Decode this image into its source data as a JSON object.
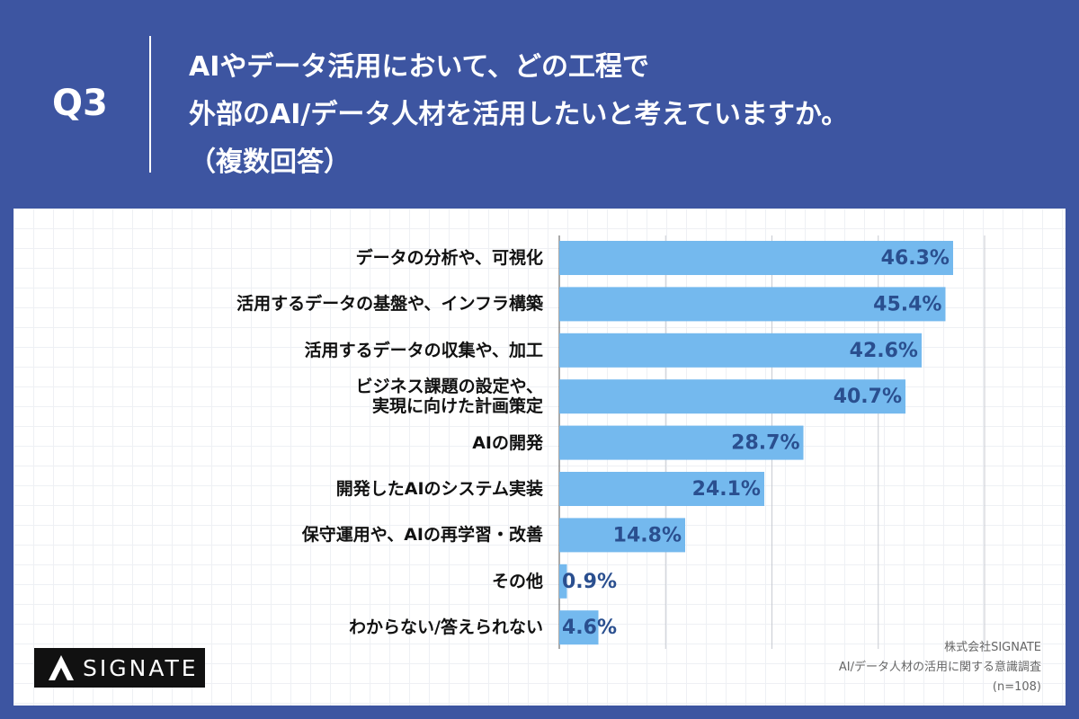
{
  "header": {
    "question": "Q3",
    "title_lines": [
      "AIやデータ活用において、どの工程で",
      "外部のAI/データ人材を活用したいと考えていますか。",
      "（複数回答）"
    ]
  },
  "chart_data": {
    "type": "bar",
    "orientation": "horizontal",
    "categories": [
      "データの分析や、可視化",
      "活用するデータの基盤や、インフラ構築",
      "活用するデータの収集や、加工",
      "ビジネス課題の設定や、\n実現に向けた計画策定",
      "AIの開発",
      "開発したAIのシステム実装",
      "保守運用や、AIの再学習・改善",
      "その他",
      "わからない/答えられない"
    ],
    "values": [
      46.3,
      45.4,
      42.6,
      40.7,
      28.7,
      24.1,
      14.8,
      0.9,
      4.6
    ],
    "value_labels": [
      "46.3%",
      "45.4%",
      "42.6%",
      "40.7%",
      "28.7%",
      "24.1%",
      "14.8%",
      "0.9%",
      "4.6%"
    ],
    "color": "#74b9ee",
    "xlim": [
      0,
      50
    ],
    "xticks": [
      0,
      12.5,
      25,
      37.5,
      50
    ],
    "grid": true
  },
  "footer": {
    "logo": "SIGNATE",
    "source_lines": [
      "株式会社SIGNATE",
      "AI/データ人材の活用に関する意識調査",
      "(n=108)"
    ]
  }
}
